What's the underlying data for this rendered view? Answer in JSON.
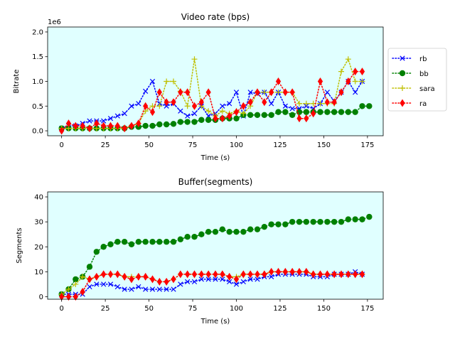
{
  "chart_data": [
    {
      "type": "line",
      "title": "Video rate (bps)",
      "xlabel": "Time (s)",
      "ylabel": "Bitrate",
      "offset_label": "1e6",
      "xlim": [
        -8,
        184
      ],
      "ylim": [
        -0.1,
        2.1
      ],
      "xticks": [
        0,
        25,
        50,
        75,
        100,
        125,
        150,
        175
      ],
      "yticks": [
        0.0,
        0.5,
        1.0,
        1.5,
        2.0
      ],
      "ytick_labels": [
        "0.0",
        "0.5",
        "1.0",
        "1.5",
        "2.0"
      ],
      "legend_position": "outside-right",
      "plot_background": "#e0ffff",
      "series": [
        {
          "name": "rb",
          "color": "#0000ff",
          "marker": "x",
          "x": [
            0,
            4,
            8,
            12,
            16,
            20,
            24,
            28,
            32,
            36,
            40,
            44,
            48,
            52,
            56,
            60,
            64,
            68,
            72,
            76,
            80,
            84,
            88,
            92,
            96,
            100,
            104,
            108,
            112,
            116,
            120,
            124,
            128,
            132,
            136,
            140,
            144,
            148,
            152,
            156,
            160,
            164,
            168,
            172
          ],
          "y": [
            0.05,
            0.1,
            0.1,
            0.15,
            0.2,
            0.2,
            0.2,
            0.25,
            0.3,
            0.35,
            0.5,
            0.55,
            0.8,
            1.0,
            0.55,
            0.5,
            0.55,
            0.4,
            0.3,
            0.35,
            0.5,
            0.3,
            0.35,
            0.5,
            0.55,
            0.78,
            0.3,
            0.78,
            0.75,
            0.78,
            0.55,
            0.78,
            0.5,
            0.45,
            0.45,
            0.5,
            0.45,
            0.55,
            0.78,
            0.6,
            0.78,
            1.0,
            0.78,
            1.0
          ]
        },
        {
          "name": "bb",
          "color": "#008000",
          "marker": "o",
          "x": [
            0,
            4,
            8,
            12,
            16,
            20,
            24,
            28,
            32,
            36,
            40,
            44,
            48,
            52,
            56,
            60,
            64,
            68,
            72,
            76,
            80,
            84,
            88,
            92,
            96,
            100,
            104,
            108,
            112,
            116,
            120,
            124,
            128,
            132,
            136,
            140,
            144,
            148,
            152,
            156,
            160,
            164,
            168,
            172,
            176
          ],
          "y": [
            0.05,
            0.05,
            0.05,
            0.05,
            0.05,
            0.05,
            0.05,
            0.05,
            0.05,
            0.05,
            0.08,
            0.08,
            0.1,
            0.1,
            0.13,
            0.13,
            0.14,
            0.18,
            0.18,
            0.18,
            0.22,
            0.22,
            0.22,
            0.25,
            0.25,
            0.25,
            0.32,
            0.32,
            0.32,
            0.32,
            0.32,
            0.38,
            0.38,
            0.32,
            0.38,
            0.38,
            0.38,
            0.38,
            0.38,
            0.38,
            0.38,
            0.38,
            0.38,
            0.5,
            0.5
          ]
        },
        {
          "name": "sara",
          "color": "#bfbf00",
          "marker": "+",
          "x": [
            0,
            4,
            8,
            12,
            16,
            20,
            24,
            28,
            32,
            36,
            40,
            44,
            48,
            52,
            56,
            60,
            64,
            68,
            72,
            76,
            80,
            84,
            88,
            92,
            96,
            100,
            104,
            108,
            112,
            116,
            120,
            124,
            128,
            132,
            136,
            140,
            144,
            148,
            152,
            156,
            160,
            164,
            168,
            172
          ],
          "y": [
            0.05,
            0.05,
            0.05,
            0.05,
            0.05,
            0.05,
            0.05,
            0.05,
            0.05,
            0.05,
            0.1,
            0.15,
            0.4,
            0.5,
            0.5,
            1.0,
            1.0,
            0.8,
            0.5,
            1.45,
            0.5,
            0.4,
            0.3,
            0.4,
            0.35,
            0.4,
            0.35,
            0.5,
            0.78,
            0.78,
            0.78,
            0.78,
            0.78,
            0.78,
            0.55,
            0.55,
            0.55,
            0.55,
            0.55,
            0.55,
            1.2,
            1.45,
            1.0,
            1.0
          ]
        },
        {
          "name": "ra",
          "color": "#ff0000",
          "marker": "d",
          "x": [
            0,
            4,
            8,
            12,
            16,
            20,
            24,
            28,
            32,
            36,
            40,
            44,
            48,
            52,
            56,
            60,
            64,
            68,
            72,
            76,
            80,
            84,
            88,
            92,
            96,
            100,
            104,
            108,
            112,
            116,
            120,
            124,
            128,
            132,
            136,
            140,
            144,
            148,
            152,
            156,
            160,
            164,
            168,
            172
          ],
          "y": [
            0.0,
            0.15,
            0.1,
            0.1,
            0.05,
            0.15,
            0.1,
            0.1,
            0.1,
            0.05,
            0.1,
            0.15,
            0.5,
            0.38,
            0.78,
            0.58,
            0.58,
            0.78,
            0.78,
            0.5,
            0.58,
            0.78,
            0.25,
            0.25,
            0.3,
            0.38,
            0.5,
            0.58,
            0.78,
            0.58,
            0.78,
            1.0,
            0.78,
            0.78,
            0.25,
            0.25,
            0.35,
            1.0,
            0.58,
            0.58,
            0.78,
            1.0,
            1.2,
            1.2
          ]
        }
      ]
    },
    {
      "type": "line",
      "title": "Buffer(segments)",
      "xlabel": "Time (s)",
      "ylabel": "Segments",
      "xlim": [
        -8,
        184
      ],
      "ylim": [
        -1,
        42
      ],
      "xticks": [
        0,
        25,
        50,
        75,
        100,
        125,
        150,
        175
      ],
      "yticks": [
        0,
        10,
        20,
        30,
        40
      ],
      "ytick_labels": [
        "0",
        "10",
        "20",
        "30",
        "40"
      ],
      "legend_position": "none",
      "plot_background": "#e0ffff",
      "series": [
        {
          "name": "rb",
          "color": "#0000ff",
          "marker": "x",
          "x": [
            0,
            4,
            8,
            12,
            16,
            20,
            24,
            28,
            32,
            36,
            40,
            44,
            48,
            52,
            56,
            60,
            64,
            68,
            72,
            76,
            80,
            84,
            88,
            92,
            96,
            100,
            104,
            108,
            112,
            116,
            120,
            124,
            128,
            132,
            136,
            140,
            144,
            148,
            152,
            156,
            160,
            164,
            168,
            172
          ],
          "y": [
            1,
            1,
            1,
            1,
            4,
            5,
            5,
            5,
            4,
            3,
            3,
            4,
            3,
            3,
            3,
            3,
            3,
            5,
            6,
            6,
            7,
            7,
            7,
            7,
            6,
            5,
            6,
            7,
            7,
            8,
            8,
            9,
            9,
            9,
            9,
            9,
            8,
            8,
            8,
            9,
            9,
            9,
            10,
            9
          ]
        },
        {
          "name": "bb",
          "color": "#008000",
          "marker": "o",
          "x": [
            0,
            4,
            8,
            12,
            16,
            20,
            24,
            28,
            32,
            36,
            40,
            44,
            48,
            52,
            56,
            60,
            64,
            68,
            72,
            76,
            80,
            84,
            88,
            92,
            96,
            100,
            104,
            108,
            112,
            116,
            120,
            124,
            128,
            132,
            136,
            140,
            144,
            148,
            152,
            156,
            160,
            164,
            168,
            172,
            176
          ],
          "y": [
            1,
            3,
            7,
            8,
            12,
            18,
            20,
            21,
            22,
            22,
            21,
            22,
            22,
            22,
            22,
            22,
            22,
            23,
            24,
            24,
            25,
            26,
            26,
            27,
            26,
            26,
            26,
            27,
            27,
            28,
            29,
            29,
            29,
            30,
            30,
            30,
            30,
            30,
            30,
            30,
            30,
            31,
            31,
            31,
            32
          ]
        },
        {
          "name": "sara",
          "color": "#bfbf00",
          "marker": "+",
          "x": [
            0,
            4,
            8,
            12,
            16,
            20,
            24,
            28,
            32,
            36,
            40,
            44,
            48,
            52,
            56,
            60,
            64,
            68,
            72,
            76,
            80,
            84,
            88,
            92,
            96,
            100,
            104,
            108,
            112,
            116,
            120,
            124,
            128,
            132,
            136,
            140,
            144,
            148,
            152,
            156,
            160,
            164,
            168,
            172
          ],
          "y": [
            1,
            3,
            5,
            8,
            7,
            8,
            9,
            9,
            9,
            8,
            8,
            8,
            8,
            7,
            6,
            6,
            7,
            9,
            9,
            9,
            9,
            9,
            9,
            9,
            8,
            8,
            9,
            9,
            9,
            9,
            10,
            10,
            10,
            10,
            10,
            10,
            9,
            9,
            9,
            9,
            9,
            9,
            9,
            9
          ]
        },
        {
          "name": "ra",
          "color": "#ff0000",
          "marker": "d",
          "x": [
            0,
            4,
            8,
            12,
            16,
            20,
            24,
            28,
            32,
            36,
            40,
            44,
            48,
            52,
            56,
            60,
            64,
            68,
            72,
            76,
            80,
            84,
            88,
            92,
            96,
            100,
            104,
            108,
            112,
            116,
            120,
            124,
            128,
            132,
            136,
            140,
            144,
            148,
            152,
            156,
            160,
            164,
            168,
            172
          ],
          "y": [
            0,
            0,
            0,
            2,
            7,
            8,
            9,
            9,
            9,
            8,
            7,
            8,
            8,
            7,
            6,
            6,
            7,
            9,
            9,
            9,
            9,
            9,
            9,
            9,
            8,
            7,
            9,
            9,
            9,
            9,
            10,
            10,
            10,
            10,
            10,
            10,
            9,
            9,
            9,
            9,
            9,
            9,
            9,
            9
          ]
        }
      ]
    }
  ]
}
